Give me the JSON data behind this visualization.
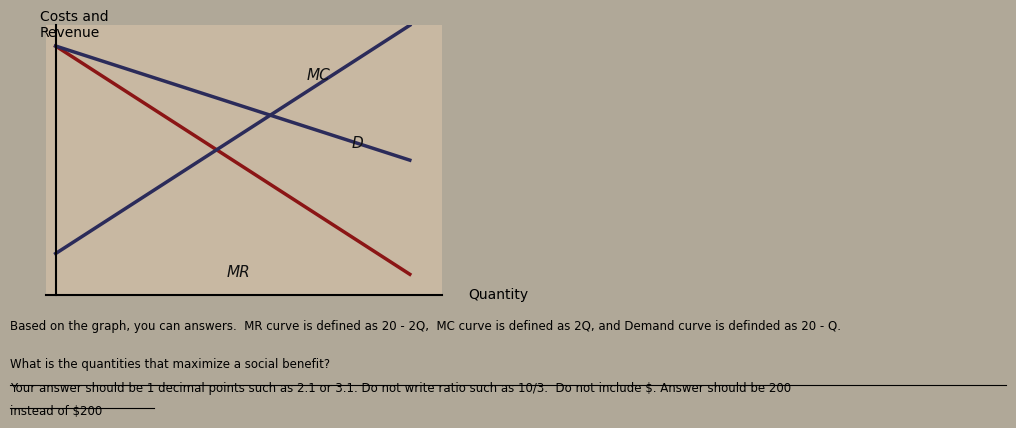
{
  "bg_color": "#b0a898",
  "graph_bg": "#c8b8a2",
  "ylabel": "Costs and\nRevenue",
  "xlabel": "Quantity",
  "mr_label": "MR",
  "mc_label": "MC",
  "d_label": "D",
  "mr_color": "#8B1515",
  "mc_color": "#2B2B5A",
  "d_color": "#2B2B5A",
  "lw": 2.5,
  "label_fs": 11,
  "axis_label_fs": 10,
  "body_fs": 8.5,
  "line1": "Based on the graph, you can answers.  MR curve is defined as 20 - 2Q,  MC curve is defined as 2Q, and Demand curve is definded as 20 - Q.",
  "line2": "What is the quantities that maximize a social benefit?",
  "line3": "Your answer should be 1 decimal points such as 2.1 or 3.1. Do not write ratio such as 10/3.  Do not include $. Answer should be 200",
  "line4": "instead of $200"
}
